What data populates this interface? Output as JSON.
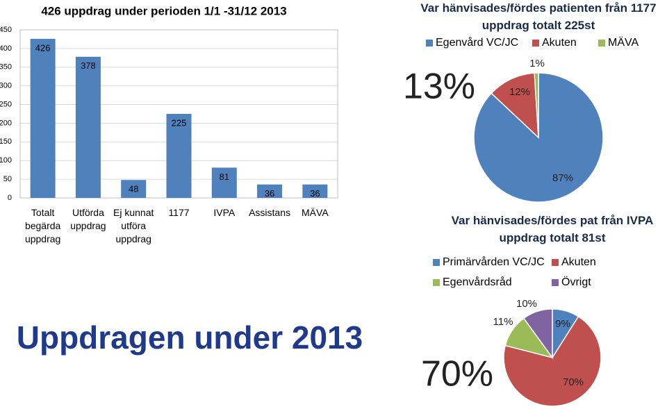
{
  "slide_title": "Uppdragen under 2013",
  "chart_data": [
    {
      "type": "bar",
      "title": "426 uppdrag under perioden 1/1 -31/12 2013",
      "categories": [
        "Totalt begärda uppdrag",
        "Utförda uppdrag",
        "Ej kunnat utföra uppdrag",
        "1177",
        "IVPA",
        "Assistans",
        "MÄVA"
      ],
      "values": [
        426,
        378,
        48,
        225,
        81,
        36,
        36
      ],
      "color": "#4f81bd",
      "ylim": [
        0,
        450
      ],
      "yticks": [
        0,
        50,
        100,
        150,
        200,
        250,
        300,
        350,
        400,
        450
      ],
      "grid": true
    },
    {
      "type": "pie",
      "title": "Var hänvisades/fördes patienten från 1177 uppdrag totalt 225st",
      "annotation": "13%",
      "labels": [
        "Egenvård VC/JC",
        "Akuten",
        "MÄVA"
      ],
      "values": [
        87,
        12,
        1
      ],
      "value_labels": [
        "87%",
        "12%",
        "1%"
      ],
      "colors": [
        "#4f81bd",
        "#c0504d",
        "#9bbb59"
      ]
    },
    {
      "type": "pie",
      "title": "Var hänvisades/fördes pat från IVPA uppdrag totalt 81st",
      "annotation": "70%",
      "labels": [
        "Primärvården VC/JC",
        "Akuten",
        "Egenvårdsråd",
        "Övrigt"
      ],
      "values": [
        9,
        70,
        11,
        10
      ],
      "value_labels": [
        "9%",
        "70%",
        "11%",
        "10%"
      ],
      "colors": [
        "#4f81bd",
        "#c0504d",
        "#9bbb59",
        "#8064a2"
      ]
    }
  ]
}
